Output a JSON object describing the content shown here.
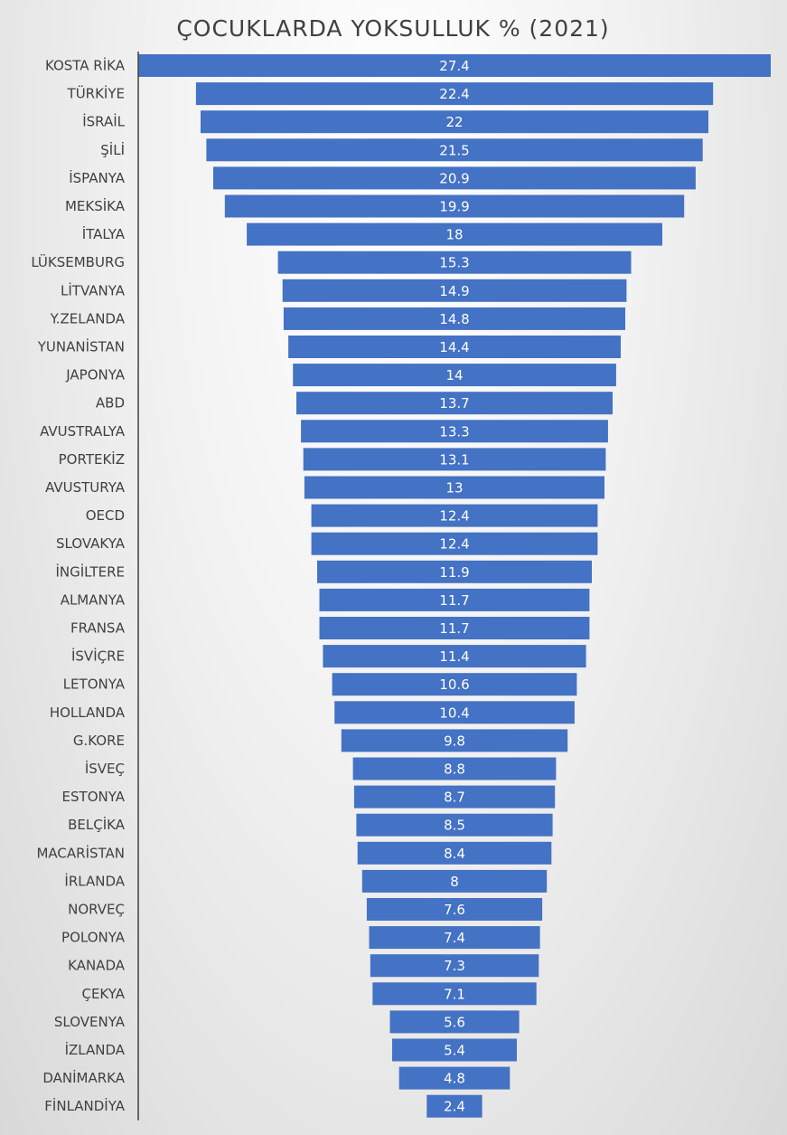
{
  "chart_data": {
    "type": "bar",
    "orientation": "horizontal",
    "title": "ÇOCUKLARDA YOKSULLUK % (2021)",
    "categories": [
      "KOSTA RİKA",
      "TÜRKİYE",
      "İSRAİL",
      "ŞİLİ",
      "İSPANYA",
      "MEKSİKA",
      "İTALYA",
      "LÜKSEMBURG",
      "LİTVANYA",
      "Y.ZELANDA",
      "YUNANİSTAN",
      "JAPONYA",
      "ABD",
      "AVUSTRALYA",
      "PORTEKİZ",
      "AVUSTURYA",
      "OECD",
      "SLOVAKYA",
      "İNGİLTERE",
      "ALMANYA",
      "FRANSA",
      "İSVİÇRE",
      "LETONYA",
      "HOLLANDA",
      "G.KORE",
      "İSVEÇ",
      "ESTONYA",
      "BELÇİKA",
      "MACARİSTAN",
      "İRLANDA",
      "NORVEÇ",
      "POLONYA",
      "KANADA",
      "ÇEKYA",
      "SLOVENYA",
      "İZLANDA",
      "DANİMARKA",
      "FİNLANDİYA"
    ],
    "values": [
      27.4,
      22.4,
      22,
      21.5,
      20.9,
      19.9,
      18,
      15.3,
      14.9,
      14.8,
      14.4,
      14,
      13.7,
      13.3,
      13.1,
      13,
      12.4,
      12.4,
      11.9,
      11.7,
      11.7,
      11.4,
      10.6,
      10.4,
      9.8,
      8.8,
      8.7,
      8.5,
      8.4,
      8,
      7.6,
      7.4,
      7.3,
      7.1,
      5.6,
      5.4,
      4.8,
      2.4
    ],
    "bar_color": "#4472c4",
    "label_color": "#ffffff",
    "bar_alignment": "centered",
    "xlim": [
      0,
      27.4
    ]
  }
}
